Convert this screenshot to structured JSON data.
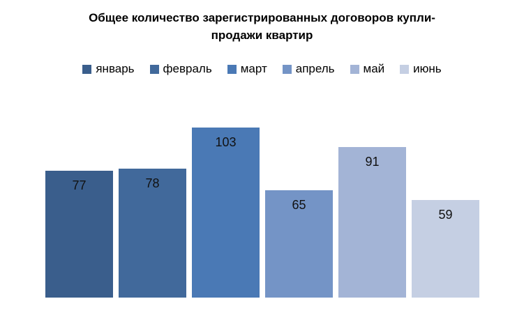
{
  "title": {
    "lines": [
      "Общее количество зарегистрированных договоров купли-",
      "продажи квартир"
    ]
  },
  "chart_data": {
    "type": "bar",
    "title": "Общее количество зарегистрированных договоров купли-продажи квартир",
    "categories": [
      "январь",
      "февраль",
      "март",
      "апрель",
      "май",
      "июнь"
    ],
    "values": [
      77,
      78,
      103,
      65,
      91,
      59
    ],
    "colors": [
      "#3A5E8C",
      "#41699B",
      "#4A79B5",
      "#7494C6",
      "#A3B4D6",
      "#C5CFE3"
    ],
    "xlabel": "",
    "ylabel": "",
    "ylim": [
      0,
      110
    ],
    "grid": false,
    "axes_visible": false,
    "legend_position": "top",
    "data_labels": "inside-end",
    "label_color": "#111111",
    "background_color": "#FFFFFF"
  }
}
